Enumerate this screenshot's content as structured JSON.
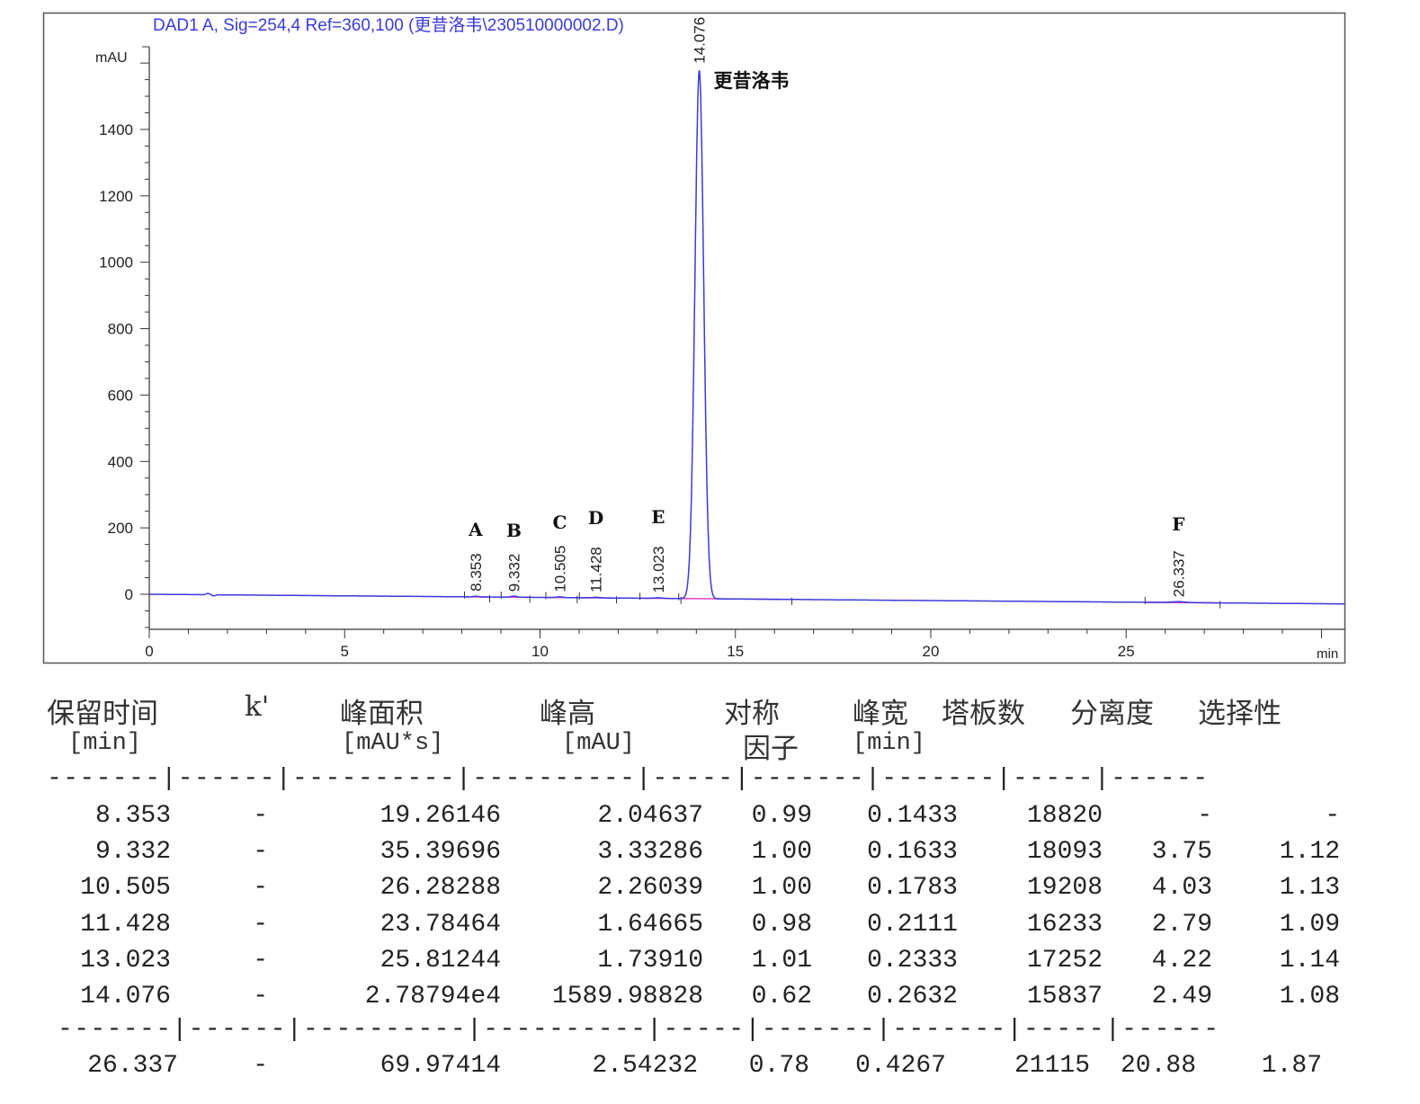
{
  "chart_data": {
    "type": "line",
    "title": "DAD1 A, Sig=254,4 Ref=360,100 (更昔洛韦\\230510000002.D)",
    "ylabel": "mAU",
    "xlabel": "min",
    "xlim": [
      0,
      30.6
    ],
    "ylim": [
      -105,
      1640
    ],
    "xticks": [
      0,
      5,
      10,
      15,
      20,
      25
    ],
    "yticks": [
      0,
      200,
      400,
      600,
      800,
      1000,
      1200,
      1400
    ],
    "grid": false,
    "colors": {
      "signal": "#3a3adc",
      "baseline": "#e040c0",
      "title": "#3a3adc"
    },
    "peaks": [
      {
        "rt": 8.353,
        "label": "8.353",
        "name": "A",
        "height": 2.04637,
        "width": 0.1433
      },
      {
        "rt": 9.332,
        "label": "9.332",
        "name": "B",
        "height": 3.33286,
        "width": 0.1633
      },
      {
        "rt": 10.505,
        "label": "10.505",
        "name": "C",
        "height": 2.26039,
        "width": 0.1783
      },
      {
        "rt": 11.428,
        "label": "11.428",
        "name": "D",
        "height": 1.64665,
        "width": 0.2111
      },
      {
        "rt": 13.023,
        "label": "13.023",
        "name": "E",
        "height": 1.7391,
        "width": 0.2333
      },
      {
        "rt": 14.076,
        "label": "14.076",
        "name": "更昔洛韦",
        "height": 1589.98828,
        "width": 0.2632
      },
      {
        "rt": 26.337,
        "label": "26.337",
        "name": "F",
        "height": 2.54232,
        "width": 0.4267
      }
    ]
  },
  "table": {
    "headers": [
      {
        "title": "保留时间",
        "unit": "[min]"
      },
      {
        "title": "k'",
        "unit": ""
      },
      {
        "title": "峰面积",
        "unit": "[mAU*s]"
      },
      {
        "title": "峰高",
        "unit": "[mAU]"
      },
      {
        "title": "对称",
        "unit": "因子"
      },
      {
        "title": "峰宽",
        "unit": "[min]"
      },
      {
        "title": "塔板数",
        "unit": ""
      },
      {
        "title": "分离度",
        "unit": ""
      },
      {
        "title": "选择性",
        "unit": ""
      }
    ],
    "separator1": "-------|------|----------|----------|-----|-------|-------|-----|------",
    "separator2": "-------|------|----------|----------|-----|-------|-------|-----|------",
    "rows": [
      [
        "8.353",
        "-",
        "19.26146",
        "2.04637",
        "0.99",
        "0.1433",
        "18820",
        "-",
        "-"
      ],
      [
        "9.332",
        "-",
        "35.39696",
        "3.33286",
        "1.00",
        "0.1633",
        "18093",
        "3.75",
        "1.12"
      ],
      [
        "10.505",
        "-",
        "26.28288",
        "2.26039",
        "1.00",
        "0.1783",
        "19208",
        "4.03",
        "1.13"
      ],
      [
        "11.428",
        "-",
        "23.78464",
        "1.64665",
        "0.98",
        "0.2111",
        "16233",
        "2.79",
        "1.09"
      ],
      [
        "13.023",
        "-",
        "25.81244",
        "1.73910",
        "1.01",
        "0.2333",
        "17252",
        "4.22",
        "1.14"
      ],
      [
        "14.076",
        "-",
        "2.78794e4",
        "1589.98828",
        "0.62",
        "0.2632",
        "15837",
        "2.49",
        "1.08"
      ]
    ],
    "last_row": [
      "26.337",
      "-",
      "69.97414",
      "2.54232",
      "0.78",
      "0.4267",
      "21115",
      "20.88",
      "1.87"
    ]
  }
}
